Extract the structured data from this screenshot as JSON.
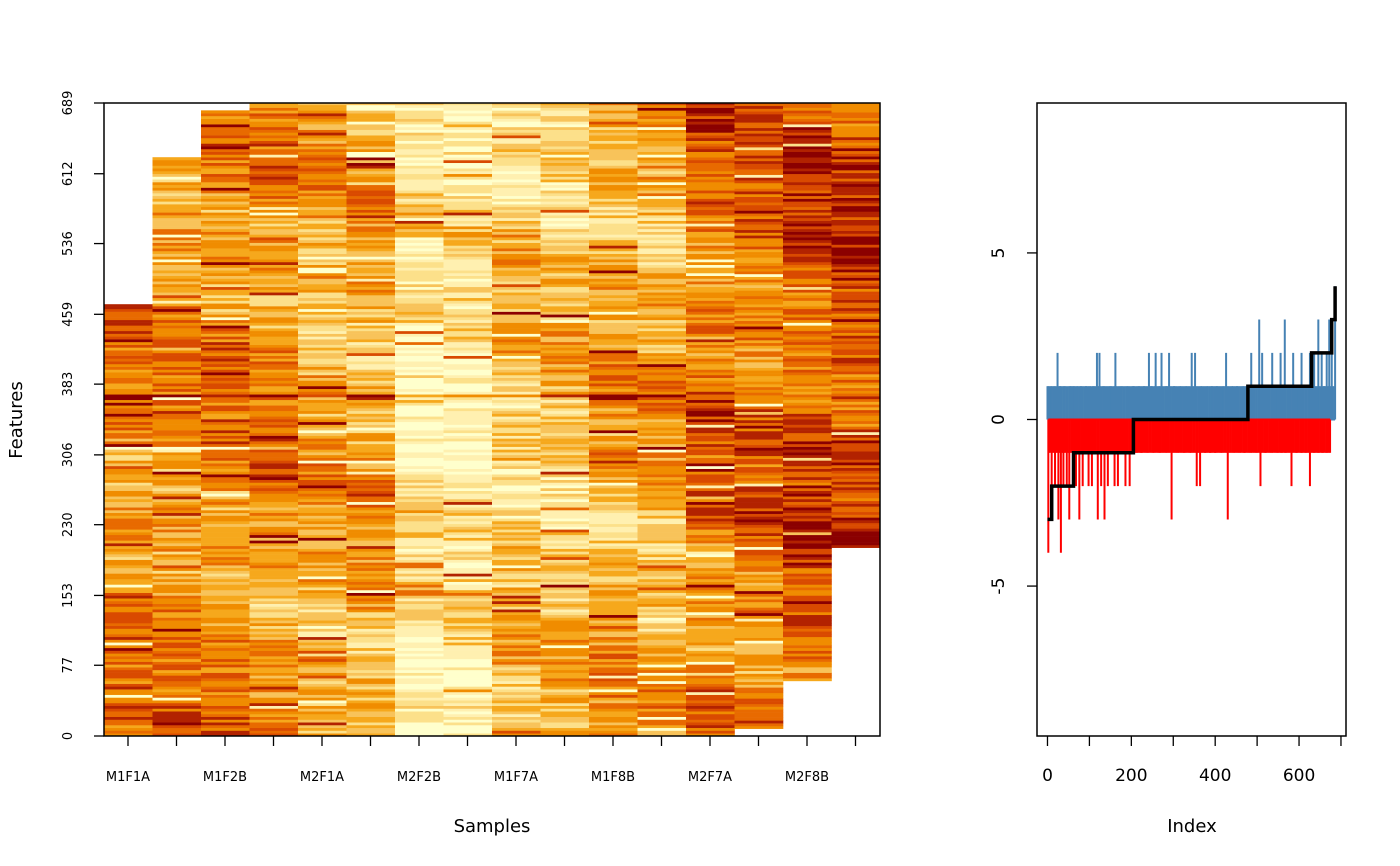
{
  "chart_data": [
    {
      "type": "heatmap",
      "xlabel": "Samples",
      "ylabel": "Features",
      "x_tick_labels": [
        "M1F1A",
        "M1F2B",
        "M2F1A",
        "M2F2B",
        "M1F7A",
        "M1F8B",
        "M2F7A",
        "M2F8B"
      ],
      "y_tick_labels": [
        "0",
        "77",
        "153",
        "230",
        "306",
        "383",
        "459",
        "536",
        "612",
        "689"
      ],
      "n_columns": 16,
      "column_feature_ranges": [
        [
          0,
          470
        ],
        [
          0,
          630
        ],
        [
          0,
          681
        ],
        [
          0,
          689
        ],
        [
          0,
          689
        ],
        [
          0,
          689
        ],
        [
          0,
          689
        ],
        [
          0,
          689
        ],
        [
          0,
          689
        ],
        [
          0,
          689
        ],
        [
          0,
          689
        ],
        [
          0,
          689
        ],
        [
          0,
          689
        ],
        [
          8,
          689
        ],
        [
          60,
          689
        ],
        [
          205,
          689
        ]
      ],
      "color_scale": [
        "#ffffcc",
        "#fff0b0",
        "#fce08a",
        "#f8c35a",
        "#f6a81c",
        "#f08c00",
        "#e86a00",
        "#d94a00",
        "#b22200",
        "#8b0000"
      ]
    },
    {
      "type": "line",
      "xlabel": "Index",
      "ylabel": "",
      "xlim": [
        -25,
        712
      ],
      "ylim": [
        -9.5,
        9.5
      ],
      "x_ticks": [
        "0",
        "200",
        "400",
        "600"
      ],
      "y_ticks": [
        "-5",
        "0",
        "5"
      ],
      "series": [
        {
          "color": "#4682b4",
          "style": "positive-spikes",
          "spikes": [
            [
              0,
              1
            ],
            [
              8,
              1
            ],
            [
              16,
              1
            ],
            [
              24,
              2
            ],
            [
              30,
              1
            ],
            [
              40,
              1
            ],
            [
              55,
              1
            ],
            [
              62,
              1
            ],
            [
              70,
              1
            ],
            [
              80,
              1
            ],
            [
              92,
              1
            ],
            [
              100,
              1
            ],
            [
              110,
              1
            ],
            [
              118,
              2
            ],
            [
              124,
              2
            ],
            [
              134,
              1
            ],
            [
              150,
              1
            ],
            [
              162,
              2
            ],
            [
              176,
              1
            ],
            [
              190,
              1
            ],
            [
              205,
              1
            ],
            [
              218,
              1
            ],
            [
              230,
              1
            ],
            [
              242,
              2
            ],
            [
              248,
              1
            ],
            [
              258,
              2
            ],
            [
              266,
              1
            ],
            [
              272,
              2
            ],
            [
              284,
              1
            ],
            [
              290,
              2
            ],
            [
              302,
              1
            ],
            [
              316,
              1
            ],
            [
              330,
              1
            ],
            [
              344,
              2
            ],
            [
              352,
              2
            ],
            [
              366,
              1
            ],
            [
              380,
              1
            ],
            [
              392,
              1
            ],
            [
              404,
              1
            ],
            [
              418,
              1
            ],
            [
              426,
              2
            ],
            [
              440,
              1
            ],
            [
              452,
              1
            ],
            [
              466,
              1
            ],
            [
              486,
              2
            ],
            [
              492,
              1
            ],
            [
              505,
              3
            ],
            [
              512,
              2
            ],
            [
              526,
              1
            ],
            [
              536,
              2
            ],
            [
              546,
              1
            ],
            [
              556,
              2
            ],
            [
              566,
              3
            ],
            [
              576,
              1
            ],
            [
              586,
              2
            ],
            [
              596,
              1
            ],
            [
              606,
              2
            ],
            [
              616,
              1
            ],
            [
              626,
              2
            ],
            [
              636,
              2
            ],
            [
              646,
              3
            ],
            [
              654,
              2
            ],
            [
              660,
              1
            ],
            [
              666,
              2
            ],
            [
              672,
              3
            ],
            [
              678,
              3
            ],
            [
              686,
              4
            ]
          ]
        },
        {
          "color": "#ff0000",
          "style": "negative-spikes",
          "spikes": [
            [
              2,
              -4
            ],
            [
              10,
              -2
            ],
            [
              18,
              -2
            ],
            [
              26,
              -3
            ],
            [
              32,
              -4
            ],
            [
              38,
              -2
            ],
            [
              46,
              -2
            ],
            [
              52,
              -3
            ],
            [
              60,
              -1
            ],
            [
              68,
              -2
            ],
            [
              76,
              -3
            ],
            [
              84,
              -2
            ],
            [
              90,
              -1
            ],
            [
              98,
              -2
            ],
            [
              106,
              -2
            ],
            [
              114,
              -1
            ],
            [
              120,
              -3
            ],
            [
              128,
              -2
            ],
            [
              136,
              -3
            ],
            [
              144,
              -2
            ],
            [
              152,
              -1
            ],
            [
              160,
              -2
            ],
            [
              168,
              -2
            ],
            [
              178,
              -1
            ],
            [
              186,
              -2
            ],
            [
              196,
              -2
            ],
            [
              202,
              -1
            ],
            [
              212,
              -1
            ],
            [
              224,
              -1
            ],
            [
              238,
              -1
            ],
            [
              252,
              -1
            ],
            [
              268,
              -1
            ],
            [
              282,
              -1
            ],
            [
              296,
              -3
            ],
            [
              310,
              -1
            ],
            [
              326,
              -1
            ],
            [
              340,
              -1
            ],
            [
              356,
              -2
            ],
            [
              364,
              -2
            ],
            [
              376,
              -1
            ],
            [
              388,
              -1
            ],
            [
              400,
              -1
            ],
            [
              414,
              -1
            ],
            [
              430,
              -3
            ],
            [
              444,
              -1
            ],
            [
              458,
              -1
            ],
            [
              470,
              -1
            ],
            [
              484,
              -1
            ],
            [
              498,
              -1
            ],
            [
              508,
              -2
            ],
            [
              520,
              -1
            ],
            [
              534,
              -1
            ],
            [
              548,
              -1
            ],
            [
              558,
              -1
            ],
            [
              568,
              -1
            ],
            [
              582,
              -2
            ],
            [
              594,
              -1
            ],
            [
              606,
              -1
            ],
            [
              616,
              -1
            ],
            [
              626,
              -2
            ],
            [
              636,
              -1
            ],
            [
              646,
              -1
            ],
            [
              656,
              -1
            ],
            [
              666,
              -1
            ],
            [
              674,
              -1
            ]
          ]
        },
        {
          "color": "#000000",
          "style": "step",
          "points": [
            [
              0,
              -3
            ],
            [
              10,
              -3
            ],
            [
              10,
              -2
            ],
            [
              62,
              -2
            ],
            [
              62,
              -1
            ],
            [
              205,
              -1
            ],
            [
              205,
              0
            ],
            [
              478,
              0
            ],
            [
              478,
              1
            ],
            [
              630,
              1
            ],
            [
              630,
              2
            ],
            [
              678,
              2
            ],
            [
              678,
              3
            ],
            [
              686,
              3
            ],
            [
              686,
              4
            ]
          ]
        }
      ]
    }
  ]
}
